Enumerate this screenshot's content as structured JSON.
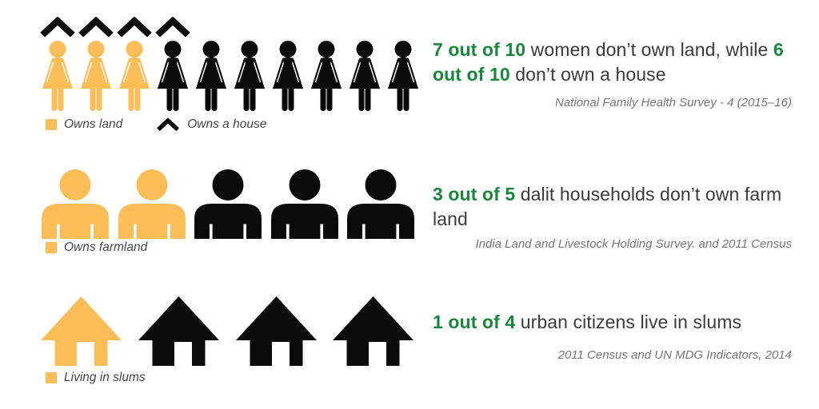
{
  "colors": {
    "highlight": "#FBBD58",
    "figure_black": "#0B0B0B",
    "accent_green": "#17873C",
    "headline_text": "#3A3A3A",
    "source_text": "#757575",
    "legend_text": "#454545"
  },
  "rows": [
    {
      "topic": "women land and house ownership",
      "figure_type": "woman",
      "total": 10,
      "highlighted": 3,
      "roofs": 4,
      "headline_lines": [
        [
          {
            "text": "7 out of 10",
            "highlight": true
          },
          {
            "text": " women don’t own land, while ",
            "highlight": false
          },
          {
            "text": "6",
            "highlight": true
          }
        ],
        [
          {
            "text": "out of 10",
            "highlight": true
          },
          {
            "text": " don’t own a house",
            "highlight": false
          }
        ]
      ],
      "source": "National Family Health Survey - 4 (2015–16)",
      "legend": [
        {
          "swatch": "square",
          "label": "Owns land"
        },
        {
          "swatch": "chevron",
          "label": "Owns a house"
        }
      ]
    },
    {
      "topic": "dalit household farm land ownership",
      "figure_type": "bust",
      "total": 5,
      "highlighted": 2,
      "roofs": 0,
      "headline_lines": [
        [
          {
            "text": "3 out of 5",
            "highlight": true
          },
          {
            "text": " dalit households don’t own farm",
            "highlight": false
          }
        ],
        [
          {
            "text": "land",
            "highlight": false
          }
        ]
      ],
      "source": "India Land and Livestock Holding Survey. and 2011 Census",
      "legend": [
        {
          "swatch": "square",
          "label": "Owns farmland"
        }
      ]
    },
    {
      "topic": "urban citizens living in slums",
      "figure_type": "house",
      "total": 4,
      "highlighted": 1,
      "roofs": 0,
      "headline_lines": [
        [
          {
            "text": "1 out of 4",
            "highlight": true
          },
          {
            "text": " urban citizens live in slums",
            "highlight": false
          }
        ]
      ],
      "source": "2011 Census and UN MDG Indicators, 2014",
      "legend": [
        {
          "swatch": "square",
          "label": "Living in slums"
        }
      ]
    }
  ],
  "chart_data": [
    {
      "type": "pictogram",
      "title": "7 out of 10 women don’t own land, while 6 out of 10 don’t own a house",
      "unit": "women",
      "icon": "woman",
      "total_icons": 10,
      "categories": [
        "Owns land",
        "Doesn’t own land"
      ],
      "values": [
        3,
        7
      ],
      "overlay": {
        "categories": [
          "Owns a house",
          "Doesn’t own a house"
        ],
        "values": [
          4,
          6
        ],
        "marker": "roof-chevron"
      },
      "source": "National Family Health Survey - 4 (2015–16)",
      "legend_position": "below-icons"
    },
    {
      "type": "pictogram",
      "title": "3 out of 5 dalit households don’t own farm land",
      "unit": "dalit households",
      "icon": "person-bust",
      "total_icons": 5,
      "categories": [
        "Owns farmland",
        "Doesn’t own farmland"
      ],
      "values": [
        2,
        3
      ],
      "source": "India Land and Livestock Holding Survey. and 2011 Census",
      "legend_position": "below-icons"
    },
    {
      "type": "pictogram",
      "title": "1 out of 4 urban citizens live in slums",
      "unit": "urban citizens",
      "icon": "house",
      "total_icons": 4,
      "categories": [
        "Living in slums",
        "Not living in slums"
      ],
      "values": [
        1,
        3
      ],
      "source": "2011 Census and UN MDG Indicators, 2014",
      "legend_position": "below-icons"
    }
  ]
}
